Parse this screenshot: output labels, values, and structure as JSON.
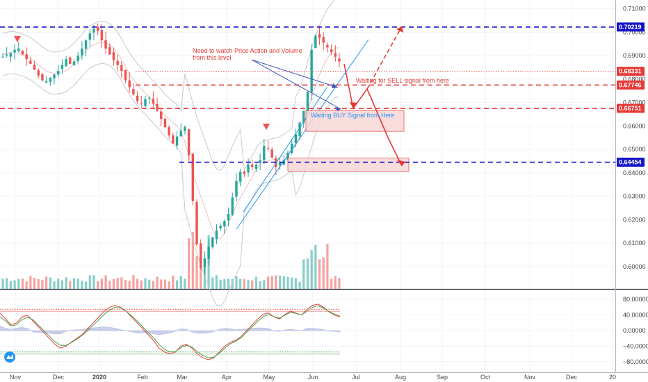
{
  "chart_data": [
    {
      "type": "candlestick",
      "price_scale": {
        "ylim": [
          0.5945,
          0.7115
        ],
        "ticks": [
          0.6,
          0.61,
          0.62,
          0.63,
          0.64,
          0.65,
          0.66,
          0.67,
          0.68,
          0.69,
          0.7,
          0.71
        ],
        "tick_labels": [
          "0.60000",
          "0.61000",
          "0.62000",
          "0.63000",
          "0.64000",
          "0.65000",
          "0.66000",
          "0.67000",
          "0.68000",
          "0.69000",
          "0.70000",
          "0.71000"
        ]
      },
      "time_axis": {
        "labels": [
          "Nov",
          "Dec",
          "2020",
          "Feb",
          "Mar",
          "Apr",
          "May",
          "Jun",
          "Jul",
          "Aug",
          "Sep",
          "Oct",
          "Nov",
          "Dec",
          "20"
        ]
      },
      "price_levels": [
        {
          "label": "0.70219",
          "value": 0.70219,
          "color": "#1515c8",
          "style": "dashed"
        },
        {
          "label": "0.68331",
          "value": 0.68331,
          "color": "#e53935",
          "style": "dotted"
        },
        {
          "label": "0.67746",
          "value": 0.67746,
          "color": "#e53935",
          "style": "dashed"
        },
        {
          "label": "0.66751",
          "value": 0.66751,
          "color": "#e53935",
          "style": "dashed"
        },
        {
          "label": "0.64454",
          "value": 0.64454,
          "color": "#1515c8",
          "style": "dashed"
        }
      ],
      "annotations": [
        {
          "text": "Need to watch Price Action and Volume",
          "color": "#e53935"
        },
        {
          "text": "from this level",
          "color": "#e53935"
        },
        {
          "text": "Waiting for SELL signal from here",
          "color": "#e53935"
        },
        {
          "text": "Waiting BUY Signal from Here",
          "color": "#2196f3"
        }
      ],
      "zones": [
        {
          "low": 0.6577,
          "high": 0.6666,
          "color": "#f8d7d7"
        },
        {
          "low": 0.6407,
          "high": 0.6463,
          "color": "#f8d7d7"
        }
      ],
      "series_close": [
        0.6895,
        0.6905,
        0.691,
        0.6925,
        0.693,
        0.6905,
        0.6885,
        0.6865,
        0.684,
        0.6815,
        0.6795,
        0.679,
        0.6805,
        0.682,
        0.6835,
        0.686,
        0.6885,
        0.6865,
        0.6875,
        0.69,
        0.693,
        0.6965,
        0.6995,
        0.7015,
        0.7005,
        0.6965,
        0.693,
        0.6905,
        0.688,
        0.686,
        0.6835,
        0.6795,
        0.6765,
        0.6735,
        0.6705,
        0.6695,
        0.6715,
        0.672,
        0.6695,
        0.6665,
        0.663,
        0.6595,
        0.656,
        0.6525,
        0.6555,
        0.658,
        0.6595,
        0.6475,
        0.628,
        0.6095,
        0.5995,
        0.6035,
        0.6085,
        0.6125,
        0.6155,
        0.6175,
        0.6195,
        0.6225,
        0.6295,
        0.6365,
        0.6405,
        0.6395,
        0.6435,
        0.6425,
        0.6435,
        0.6455,
        0.6515,
        0.6505,
        0.6465,
        0.6425,
        0.6445,
        0.6455,
        0.6485,
        0.6525,
        0.6565,
        0.6615,
        0.6665,
        0.6745,
        0.6925,
        0.6985,
        0.6975,
        0.6955,
        0.6935,
        0.6915,
        0.6895,
        0.6875
      ]
    },
    {
      "type": "line",
      "title": "",
      "ylim": [
        -100,
        100
      ],
      "ticks": [
        80,
        40,
        0,
        -40,
        -80
      ],
      "tick_labels": [
        "80.00000",
        "40.00000",
        "0.00000",
        "−40.00000",
        "−80.00000"
      ],
      "levels": [
        {
          "value": 55,
          "color": "#e53935"
        },
        {
          "value": -55,
          "color": "#43a047"
        }
      ],
      "series": [
        {
          "color": "#e53935",
          "values": [
            45,
            30,
            15,
            20,
            35,
            40,
            25,
            10,
            -5,
            -20,
            -35,
            -45,
            -40,
            -30,
            -20,
            -10,
            5,
            20,
            35,
            50,
            60,
            65,
            60,
            50,
            35,
            20,
            5,
            -10,
            -25,
            -45,
            -55,
            -60,
            -55,
            -40,
            -35,
            -45,
            -60,
            -70,
            -75,
            -70,
            -55,
            -40,
            -30,
            -25,
            -15,
            0,
            15,
            30,
            42,
            45,
            35,
            30,
            42,
            50,
            45,
            40,
            55,
            65,
            68,
            60,
            48,
            40,
            35
          ]
        },
        {
          "color": "#43a047",
          "values": [
            35,
            25,
            12,
            15,
            28,
            35,
            28,
            14,
            0,
            -14,
            -28,
            -38,
            -38,
            -31,
            -22,
            -12,
            0,
            14,
            28,
            42,
            53,
            60,
            58,
            50,
            38,
            25,
            10,
            -5,
            -18,
            -36,
            -48,
            -55,
            -54,
            -44,
            -38,
            -42,
            -54,
            -64,
            -70,
            -68,
            -58,
            -45,
            -34,
            -27,
            -18,
            -4,
            10,
            24,
            36,
            41,
            36,
            32,
            40,
            47,
            44,
            40,
            50,
            60,
            64,
            58,
            49,
            42,
            38
          ]
        }
      ]
    }
  ]
}
